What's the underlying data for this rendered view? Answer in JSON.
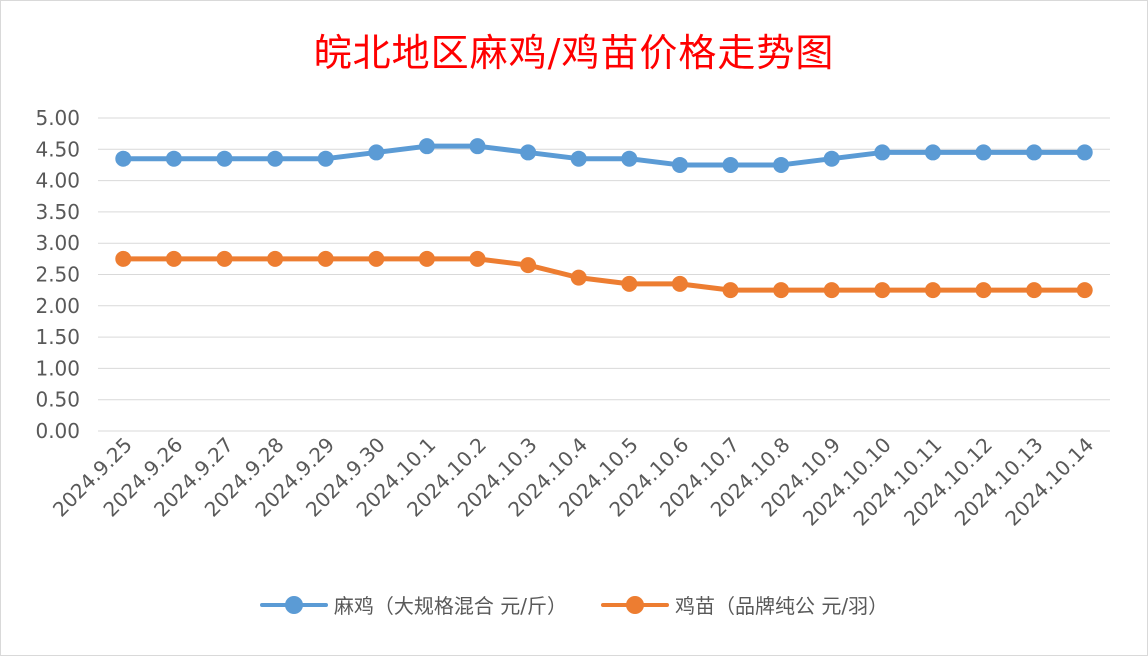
{
  "chart_data": {
    "type": "line",
    "title": "皖北地区麻鸡/鸡苗价格走势图",
    "categories": [
      "2024.9.25",
      "2024.9.26",
      "2024.9.27",
      "2024.9.28",
      "2024.9.29",
      "2024.9.30",
      "2024.10.1",
      "2024.10.2",
      "2024.10.3",
      "2024.10.4",
      "2024.10.5",
      "2024.10.6",
      "2024.10.7",
      "2024.10.8",
      "2024.10.9",
      "2024.10.10",
      "2024.10.11",
      "2024.10.12",
      "2024.10.13",
      "2024.10.14"
    ],
    "series": [
      {
        "name": "麻鸡（大规格混合 元/斤）",
        "color": "#5b9bd5",
        "values": [
          4.35,
          4.35,
          4.35,
          4.35,
          4.35,
          4.45,
          4.55,
          4.55,
          4.45,
          4.35,
          4.35,
          4.25,
          4.25,
          4.25,
          4.35,
          4.45,
          4.45,
          4.45,
          4.45,
          4.45
        ]
      },
      {
        "name": "鸡苗（品牌纯公 元/羽）",
        "color": "#ed7d31",
        "values": [
          2.75,
          2.75,
          2.75,
          2.75,
          2.75,
          2.75,
          2.75,
          2.75,
          2.65,
          2.45,
          2.35,
          2.35,
          2.25,
          2.25,
          2.25,
          2.25,
          2.25,
          2.25,
          2.25,
          2.25
        ]
      }
    ],
    "ylim": [
      0,
      5
    ],
    "yticks": [
      "0.00",
      "0.50",
      "1.00",
      "1.50",
      "2.00",
      "2.50",
      "3.00",
      "3.50",
      "4.00",
      "4.50",
      "5.00"
    ],
    "grid": true,
    "legend_position": "bottom"
  }
}
